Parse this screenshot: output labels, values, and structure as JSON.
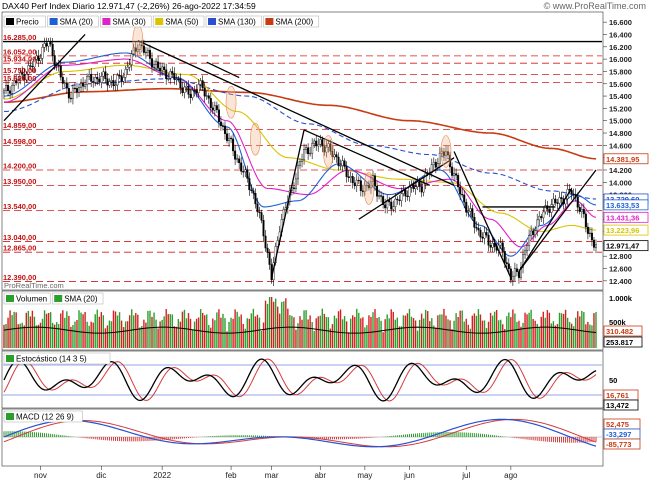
{
  "header": {
    "title": "DAX40 Perf Index Diario 12.971,47 (-2,26%) 26-ago-2022 17:34:59",
    "watermark": "© www.ProRealTime.com",
    "source": "ProRealTime.com"
  },
  "chart_data": [
    {
      "type": "candlestick",
      "panel": "price",
      "legend": [
        {
          "name": "Precio",
          "color": "#000000"
        },
        {
          "name": "SMA (20)",
          "color": "#1f5fd6"
        },
        {
          "name": "SMA (30)",
          "color": "#e020c8"
        },
        {
          "name": "SMA (50)",
          "color": "#d8c400"
        },
        {
          "name": "SMA (130)",
          "color": "#2a4fd0"
        },
        {
          "name": "SMA (200)",
          "color": "#c83c14"
        }
      ],
      "x_ticks": [
        "nov",
        "dic",
        "2022",
        "feb",
        "mar",
        "abr",
        "may",
        "jun",
        "jul",
        "ago"
      ],
      "ylim": [
        12300,
        16700
      ],
      "y_ticks": [
        16600,
        16400,
        16200,
        16000,
        15800,
        15600,
        15400,
        15200,
        15000,
        14800,
        14600,
        14400,
        14200,
        14000,
        13800,
        13600,
        13400,
        13200,
        13000,
        12800,
        12600,
        12400
      ],
      "y_tick_labels": [
        "16.600",
        "16.400",
        "16.200",
        "16.000",
        "15.800",
        "15.600",
        "15.400",
        "15.200",
        "15.000",
        "14.800",
        "14.600",
        "14.400",
        "14.200",
        "14.000",
        "13.800",
        "13.600",
        "13.400",
        "13.200",
        "13.000",
        "12.800",
        "12.600",
        "12.400"
      ],
      "levels": [
        {
          "value": 16285,
          "label": "16.285,00",
          "style": "solid"
        },
        {
          "value": 16052,
          "label": "16.052,00",
          "style": "dashed"
        },
        {
          "value": 15934,
          "label": "15.934,00",
          "style": "dashed"
        },
        {
          "value": 15750,
          "label": "15.750,00",
          "style": "dashed"
        },
        {
          "value": 15620,
          "label": "15.620,00",
          "style": "dashed"
        },
        {
          "value": 14859,
          "label": "14.859,00",
          "style": "dashed"
        },
        {
          "value": 14598,
          "label": "14.598,00",
          "style": "dashed"
        },
        {
          "value": 14200,
          "label": "14.200,00",
          "style": "dashed"
        },
        {
          "value": 13950,
          "label": "13.950,00",
          "style": "dashed"
        },
        {
          "value": 13540,
          "label": "13.540,00",
          "style": "dashed"
        },
        {
          "value": 13040,
          "label": "13.040,00",
          "style": "dashed"
        },
        {
          "value": 12865,
          "label": "12.865,00",
          "style": "dashed"
        },
        {
          "value": 12390,
          "label": "12.390,00",
          "style": "dashed"
        }
      ],
      "last_values": [
        {
          "value": 14381.95,
          "label": "14.381,95",
          "color": "#c83c14"
        },
        {
          "value": 13729.6,
          "label": "13.729,60",
          "color": "#2a4fd0"
        },
        {
          "value": 13633.53,
          "label": "13.633,53",
          "color": "#1f5fd6"
        },
        {
          "value": 13431.36,
          "label": "13.431,36",
          "color": "#e020c8"
        },
        {
          "value": 13223.96,
          "label": "13.223,96",
          "color": "#d8c400"
        },
        {
          "value": 12971.47,
          "label": "12.971,47",
          "color": "#000000"
        }
      ],
      "close_path": [
        [
          0,
          15450
        ],
        [
          8,
          15700
        ],
        [
          14,
          15900
        ],
        [
          18,
          16100
        ],
        [
          22,
          16280
        ],
        [
          25,
          16000
        ],
        [
          28,
          15700
        ],
        [
          33,
          15400
        ],
        [
          40,
          15650
        ],
        [
          48,
          15700
        ],
        [
          55,
          15600
        ],
        [
          60,
          15800
        ],
        [
          66,
          16250
        ],
        [
          70,
          16100
        ],
        [
          76,
          15850
        ],
        [
          84,
          15700
        ],
        [
          92,
          15400
        ],
        [
          96,
          15600
        ],
        [
          100,
          15400
        ],
        [
          105,
          15100
        ],
        [
          112,
          14600
        ],
        [
          116,
          14300
        ],
        [
          122,
          13900
        ],
        [
          128,
          13200
        ],
        [
          132,
          12450
        ],
        [
          136,
          13300
        ],
        [
          142,
          13900
        ],
        [
          148,
          14500
        ],
        [
          156,
          14650
        ],
        [
          164,
          14400
        ],
        [
          170,
          14100
        ],
        [
          176,
          13900
        ],
        [
          182,
          14000
        ],
        [
          188,
          13600
        ],
        [
          194,
          13700
        ],
        [
          200,
          13900
        ],
        [
          206,
          13950
        ],
        [
          212,
          14300
        ],
        [
          218,
          14500
        ],
        [
          222,
          14100
        ],
        [
          228,
          13600
        ],
        [
          234,
          13200
        ],
        [
          240,
          13000
        ],
        [
          246,
          12900
        ],
        [
          250,
          12450
        ],
        [
          254,
          12550
        ],
        [
          258,
          13000
        ],
        [
          262,
          13300
        ],
        [
          268,
          13600
        ],
        [
          274,
          13700
        ],
        [
          280,
          13850
        ],
        [
          284,
          13600
        ],
        [
          288,
          13200
        ],
        [
          292,
          12971.47
        ]
      ],
      "sma": [
        {
          "name": "SMA (200)",
          "color": "#c83c14",
          "points": [
            [
              0,
              15300
            ],
            [
              40,
              15470
            ],
            [
              80,
              15520
            ],
            [
              120,
              15460
            ],
            [
              160,
              15250
            ],
            [
              200,
              15000
            ],
            [
              240,
              14800
            ],
            [
              270,
              14550
            ],
            [
              292,
              14381.95
            ]
          ]
        },
        {
          "name": "SMA (130)",
          "color": "#2a4fd0",
          "points": [
            [
              0,
              15150
            ],
            [
              40,
              15600
            ],
            [
              80,
              15680
            ],
            [
              120,
              15400
            ],
            [
              150,
              14950
            ],
            [
              180,
              14600
            ],
            [
              210,
              14450
            ],
            [
              240,
              14150
            ],
            [
              270,
              13860
            ],
            [
              292,
              13729.6
            ]
          ]
        },
        {
          "name": "SMA (50)",
          "color": "#d8c400",
          "points": [
            [
              0,
              15350
            ],
            [
              30,
              15800
            ],
            [
              60,
              15900
            ],
            [
              90,
              15750
            ],
            [
              115,
              15150
            ],
            [
              140,
              14400
            ],
            [
              165,
              14200
            ],
            [
              195,
              14050
            ],
            [
              220,
              14000
            ],
            [
              245,
              13500
            ],
            [
              265,
              13200
            ],
            [
              280,
              13300
            ],
            [
              292,
              13223.96
            ]
          ]
        },
        {
          "name": "SMA (30)",
          "color": "#e020c8",
          "points": [
            [
              0,
              15300
            ],
            [
              30,
              15900
            ],
            [
              60,
              16000
            ],
            [
              85,
              15700
            ],
            [
              110,
              15000
            ],
            [
              130,
              13900
            ],
            [
              150,
              13800
            ],
            [
              170,
              14200
            ],
            [
              195,
              13900
            ],
            [
              220,
              14050
            ],
            [
              240,
              13400
            ],
            [
              255,
              12950
            ],
            [
              268,
              13300
            ],
            [
              282,
              13700
            ],
            [
              292,
              13431.36
            ]
          ]
        },
        {
          "name": "SMA (20)",
          "color": "#1f5fd6",
          "points": [
            [
              0,
              15400
            ],
            [
              30,
              15950
            ],
            [
              60,
              16100
            ],
            [
              85,
              15700
            ],
            [
              110,
              14900
            ],
            [
              128,
              13600
            ],
            [
              145,
              13700
            ],
            [
              165,
              14300
            ],
            [
              190,
              13800
            ],
            [
              215,
              14200
            ],
            [
              235,
              13300
            ],
            [
              250,
              12800
            ],
            [
              265,
              13300
            ],
            [
              282,
              13800
            ],
            [
              292,
              13633.53
            ]
          ]
        }
      ]
    },
    {
      "type": "bar",
      "panel": "volume",
      "legend": [
        {
          "name": "Volumen"
        },
        {
          "name": "SMA (20)"
        }
      ],
      "y_tick_labels": [
        "1.000k",
        "500k"
      ],
      "last_values": [
        {
          "value": 310482,
          "label": "310.482",
          "color": "#c83c14"
        },
        {
          "value": 253817,
          "label": "253.817",
          "color": "#000000"
        }
      ]
    },
    {
      "type": "line",
      "panel": "stochastic",
      "legend": [
        {
          "name": "Estocástico (14 3 5)"
        }
      ],
      "y_tick_labels": [
        "50"
      ],
      "levels": [
        80,
        20
      ],
      "last_values": [
        {
          "value": 16.761,
          "label": "16,761",
          "color": "#c83c14"
        },
        {
          "value": 13.472,
          "label": "13,472",
          "color": "#000000"
        }
      ]
    },
    {
      "type": "line",
      "panel": "macd",
      "legend": [
        {
          "name": "MACD (12 26 9)"
        }
      ],
      "last_values": [
        {
          "value": 52.475,
          "label": "52,475",
          "color": "#c83c14"
        },
        {
          "value": -33.297,
          "label": "-33,297",
          "color": "#1f5fd6"
        },
        {
          "value": -85.773,
          "label": "-85,773",
          "color": "#c83c14"
        }
      ]
    }
  ]
}
